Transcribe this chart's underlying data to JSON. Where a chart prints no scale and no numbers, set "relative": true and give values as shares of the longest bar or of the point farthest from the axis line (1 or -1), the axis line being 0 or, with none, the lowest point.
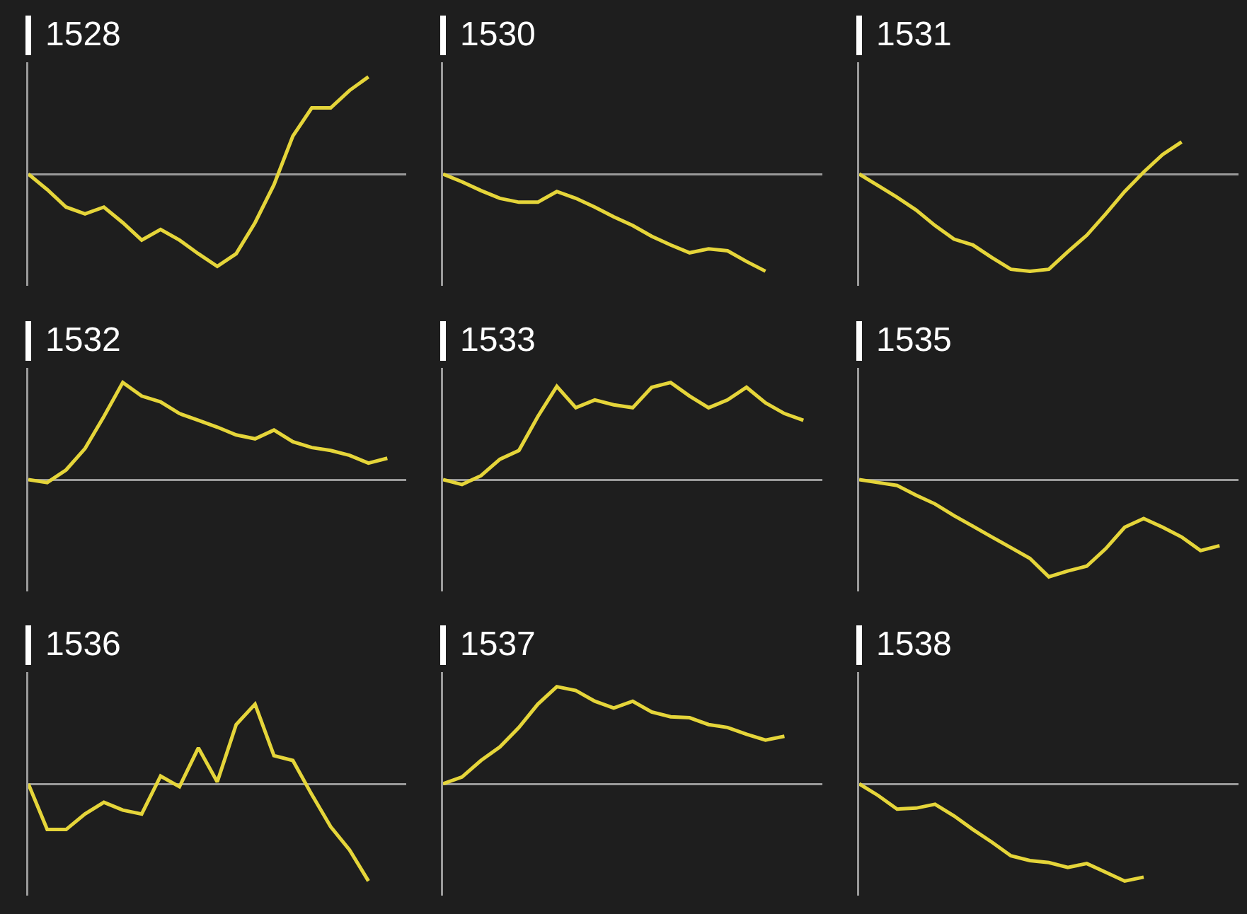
{
  "chart_data": [
    {
      "type": "line",
      "title": "1528",
      "relative": true,
      "color": "#e5d53a",
      "categories": [
        null,
        null,
        null,
        null,
        null,
        null,
        null,
        null,
        null,
        null,
        null,
        null,
        null,
        null,
        null,
        null,
        null,
        null,
        null,
        null,
        null
      ],
      "values": [
        0,
        -0.16,
        -0.34,
        -0.41,
        -0.34,
        -0.5,
        -0.68,
        -0.57,
        -0.68,
        -0.82,
        -0.95,
        -0.82,
        -0.5,
        -0.11,
        0.39,
        0.68,
        0.68,
        0.86,
        1,
        null,
        null
      ]
    },
    {
      "type": "line",
      "title": "1530",
      "relative": true,
      "color": "#e5d53a",
      "categories": [
        null,
        null,
        null,
        null,
        null,
        null,
        null,
        null,
        null,
        null,
        null,
        null,
        null,
        null,
        null,
        null,
        null,
        null,
        null,
        null,
        null
      ],
      "values": [
        0,
        -0.08,
        -0.17,
        -0.25,
        -0.29,
        -0.29,
        -0.18,
        -0.25,
        -0.34,
        -0.44,
        -0.53,
        -0.64,
        -0.73,
        -0.81,
        -0.77,
        -0.79,
        -0.9,
        -1,
        null,
        null,
        null
      ]
    },
    {
      "type": "line",
      "title": "1531",
      "relative": true,
      "color": "#e5d53a",
      "categories": [
        null,
        null,
        null,
        null,
        null,
        null,
        null,
        null,
        null,
        null,
        null,
        null,
        null,
        null,
        null,
        null,
        null,
        null,
        null,
        null,
        null
      ],
      "values": [
        0,
        -0.12,
        -0.24,
        -0.37,
        -0.53,
        -0.67,
        -0.73,
        -0.86,
        -0.98,
        -1,
        -0.98,
        -0.8,
        -0.63,
        -0.41,
        -0.18,
        0.02,
        0.2,
        0.33,
        null,
        null,
        null
      ]
    },
    {
      "type": "line",
      "title": "1532",
      "relative": true,
      "color": "#e5d53a",
      "categories": [
        null,
        null,
        null,
        null,
        null,
        null,
        null,
        null,
        null,
        null,
        null,
        null,
        null,
        null,
        null,
        null,
        null,
        null,
        null,
        null,
        null
      ],
      "values": [
        0,
        -0.03,
        0.1,
        0.32,
        0.65,
        1,
        0.86,
        0.8,
        0.68,
        0.61,
        0.54,
        0.46,
        0.42,
        0.51,
        0.39,
        0.33,
        0.3,
        0.25,
        0.17,
        0.22,
        null
      ]
    },
    {
      "type": "line",
      "title": "1533",
      "relative": true,
      "color": "#e5d53a",
      "categories": [
        null,
        null,
        null,
        null,
        null,
        null,
        null,
        null,
        null,
        null,
        null,
        null,
        null,
        null,
        null,
        null,
        null,
        null,
        null,
        null,
        null
      ],
      "values": [
        0,
        -0.05,
        0.04,
        0.21,
        0.3,
        0.65,
        0.96,
        0.74,
        0.82,
        0.77,
        0.74,
        0.95,
        1,
        0.86,
        0.74,
        0.82,
        0.95,
        0.79,
        0.68,
        0.61,
        null
      ]
    },
    {
      "type": "line",
      "title": "1535",
      "relative": true,
      "color": "#e5d53a",
      "categories": [
        null,
        null,
        null,
        null,
        null,
        null,
        null,
        null,
        null,
        null,
        null,
        null,
        null,
        null,
        null,
        null,
        null,
        null,
        null,
        null,
        null
      ],
      "values": [
        0,
        -0.03,
        -0.06,
        -0.16,
        -0.25,
        -0.37,
        -0.48,
        -0.59,
        -0.7,
        -0.81,
        -1,
        -0.94,
        -0.89,
        -0.71,
        -0.49,
        -0.4,
        -0.49,
        -0.59,
        -0.73,
        -0.68,
        null
      ]
    },
    {
      "type": "line",
      "title": "1536",
      "relative": true,
      "color": "#e5d53a",
      "categories": [
        null,
        null,
        null,
        null,
        null,
        null,
        null,
        null,
        null,
        null,
        null,
        null,
        null,
        null,
        null,
        null,
        null,
        null,
        null,
        null,
        null
      ],
      "values": [
        0,
        -0.47,
        -0.47,
        -0.31,
        -0.19,
        -0.27,
        -0.31,
        0.08,
        -0.03,
        0.37,
        0.02,
        0.61,
        0.82,
        0.29,
        0.24,
        -0.11,
        -0.44,
        -0.68,
        -1,
        null,
        null
      ]
    },
    {
      "type": "line",
      "title": "1537",
      "relative": true,
      "color": "#e5d53a",
      "categories": [
        null,
        null,
        null,
        null,
        null,
        null,
        null,
        null,
        null,
        null,
        null,
        null,
        null,
        null,
        null,
        null,
        null,
        null,
        null,
        null,
        null
      ],
      "values": [
        0,
        0.07,
        0.24,
        0.38,
        0.58,
        0.82,
        1,
        0.96,
        0.85,
        0.78,
        0.85,
        0.74,
        0.69,
        0.68,
        0.61,
        0.58,
        0.51,
        0.45,
        0.49,
        null,
        null
      ]
    },
    {
      "type": "line",
      "title": "1538",
      "relative": true,
      "color": "#e5d53a",
      "categories": [
        null,
        null,
        null,
        null,
        null,
        null,
        null,
        null,
        null,
        null,
        null,
        null,
        null,
        null,
        null,
        null,
        null,
        null,
        null,
        null,
        null
      ],
      "values": [
        0,
        -0.12,
        -0.26,
        -0.25,
        -0.21,
        -0.33,
        -0.47,
        -0.6,
        -0.74,
        -0.79,
        -0.81,
        -0.86,
        -0.82,
        -0.91,
        -1,
        -0.96,
        null,
        null,
        null,
        null,
        null
      ]
    }
  ]
}
